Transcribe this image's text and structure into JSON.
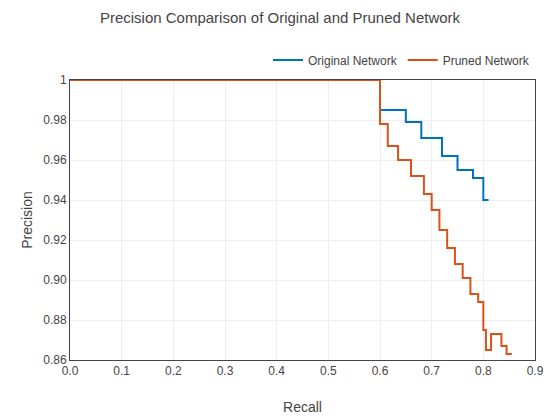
{
  "chart_data": {
    "type": "line",
    "title": "Precision Comparison of Original and Pruned Network",
    "xlabel": "Recall",
    "ylabel": "Precision",
    "xlim": [
      0,
      0.9
    ],
    "ylim": [
      0.86,
      1
    ],
    "xticks": [
      {
        "value": 0,
        "label": "0.0"
      },
      0.1,
      0.2,
      0.3,
      0.4,
      0.5,
      0.6,
      0.7,
      0.8,
      0.9
    ],
    "yticks": [
      0.86,
      0.88,
      {
        "value": 0.9,
        "label": "0.90"
      },
      0.92,
      0.94,
      0.96,
      0.98,
      1
    ],
    "grid": true,
    "legend": "upper right",
    "series": [
      {
        "name": "Original Network",
        "color": "#0072BD",
        "x": [
          0.0,
          0.6,
          0.6,
          0.65,
          0.65,
          0.68,
          0.68,
          0.72,
          0.72,
          0.75,
          0.75,
          0.78,
          0.78,
          0.8,
          0.8,
          0.81
        ],
        "values": [
          1.0,
          1.0,
          0.985,
          0.985,
          0.979,
          0.979,
          0.971,
          0.971,
          0.962,
          0.962,
          0.955,
          0.955,
          0.951,
          0.951,
          0.94,
          0.94
        ]
      },
      {
        "name": "Pruned Network",
        "color": "#D95319",
        "x": [
          0.0,
          0.6,
          0.6,
          0.615,
          0.615,
          0.635,
          0.635,
          0.66,
          0.66,
          0.685,
          0.685,
          0.7,
          0.7,
          0.715,
          0.715,
          0.73,
          0.73,
          0.745,
          0.745,
          0.76,
          0.76,
          0.775,
          0.775,
          0.79,
          0.79,
          0.8,
          0.8,
          0.805,
          0.805,
          0.815,
          0.815,
          0.835,
          0.835,
          0.845,
          0.845,
          0.855
        ],
        "values": [
          1.0,
          1.0,
          0.978,
          0.978,
          0.967,
          0.967,
          0.96,
          0.96,
          0.952,
          0.952,
          0.943,
          0.943,
          0.935,
          0.935,
          0.925,
          0.925,
          0.916,
          0.916,
          0.908,
          0.908,
          0.901,
          0.901,
          0.893,
          0.893,
          0.889,
          0.889,
          0.875,
          0.875,
          0.865,
          0.865,
          0.873,
          0.873,
          0.867,
          0.867,
          0.863,
          0.863
        ]
      }
    ]
  }
}
